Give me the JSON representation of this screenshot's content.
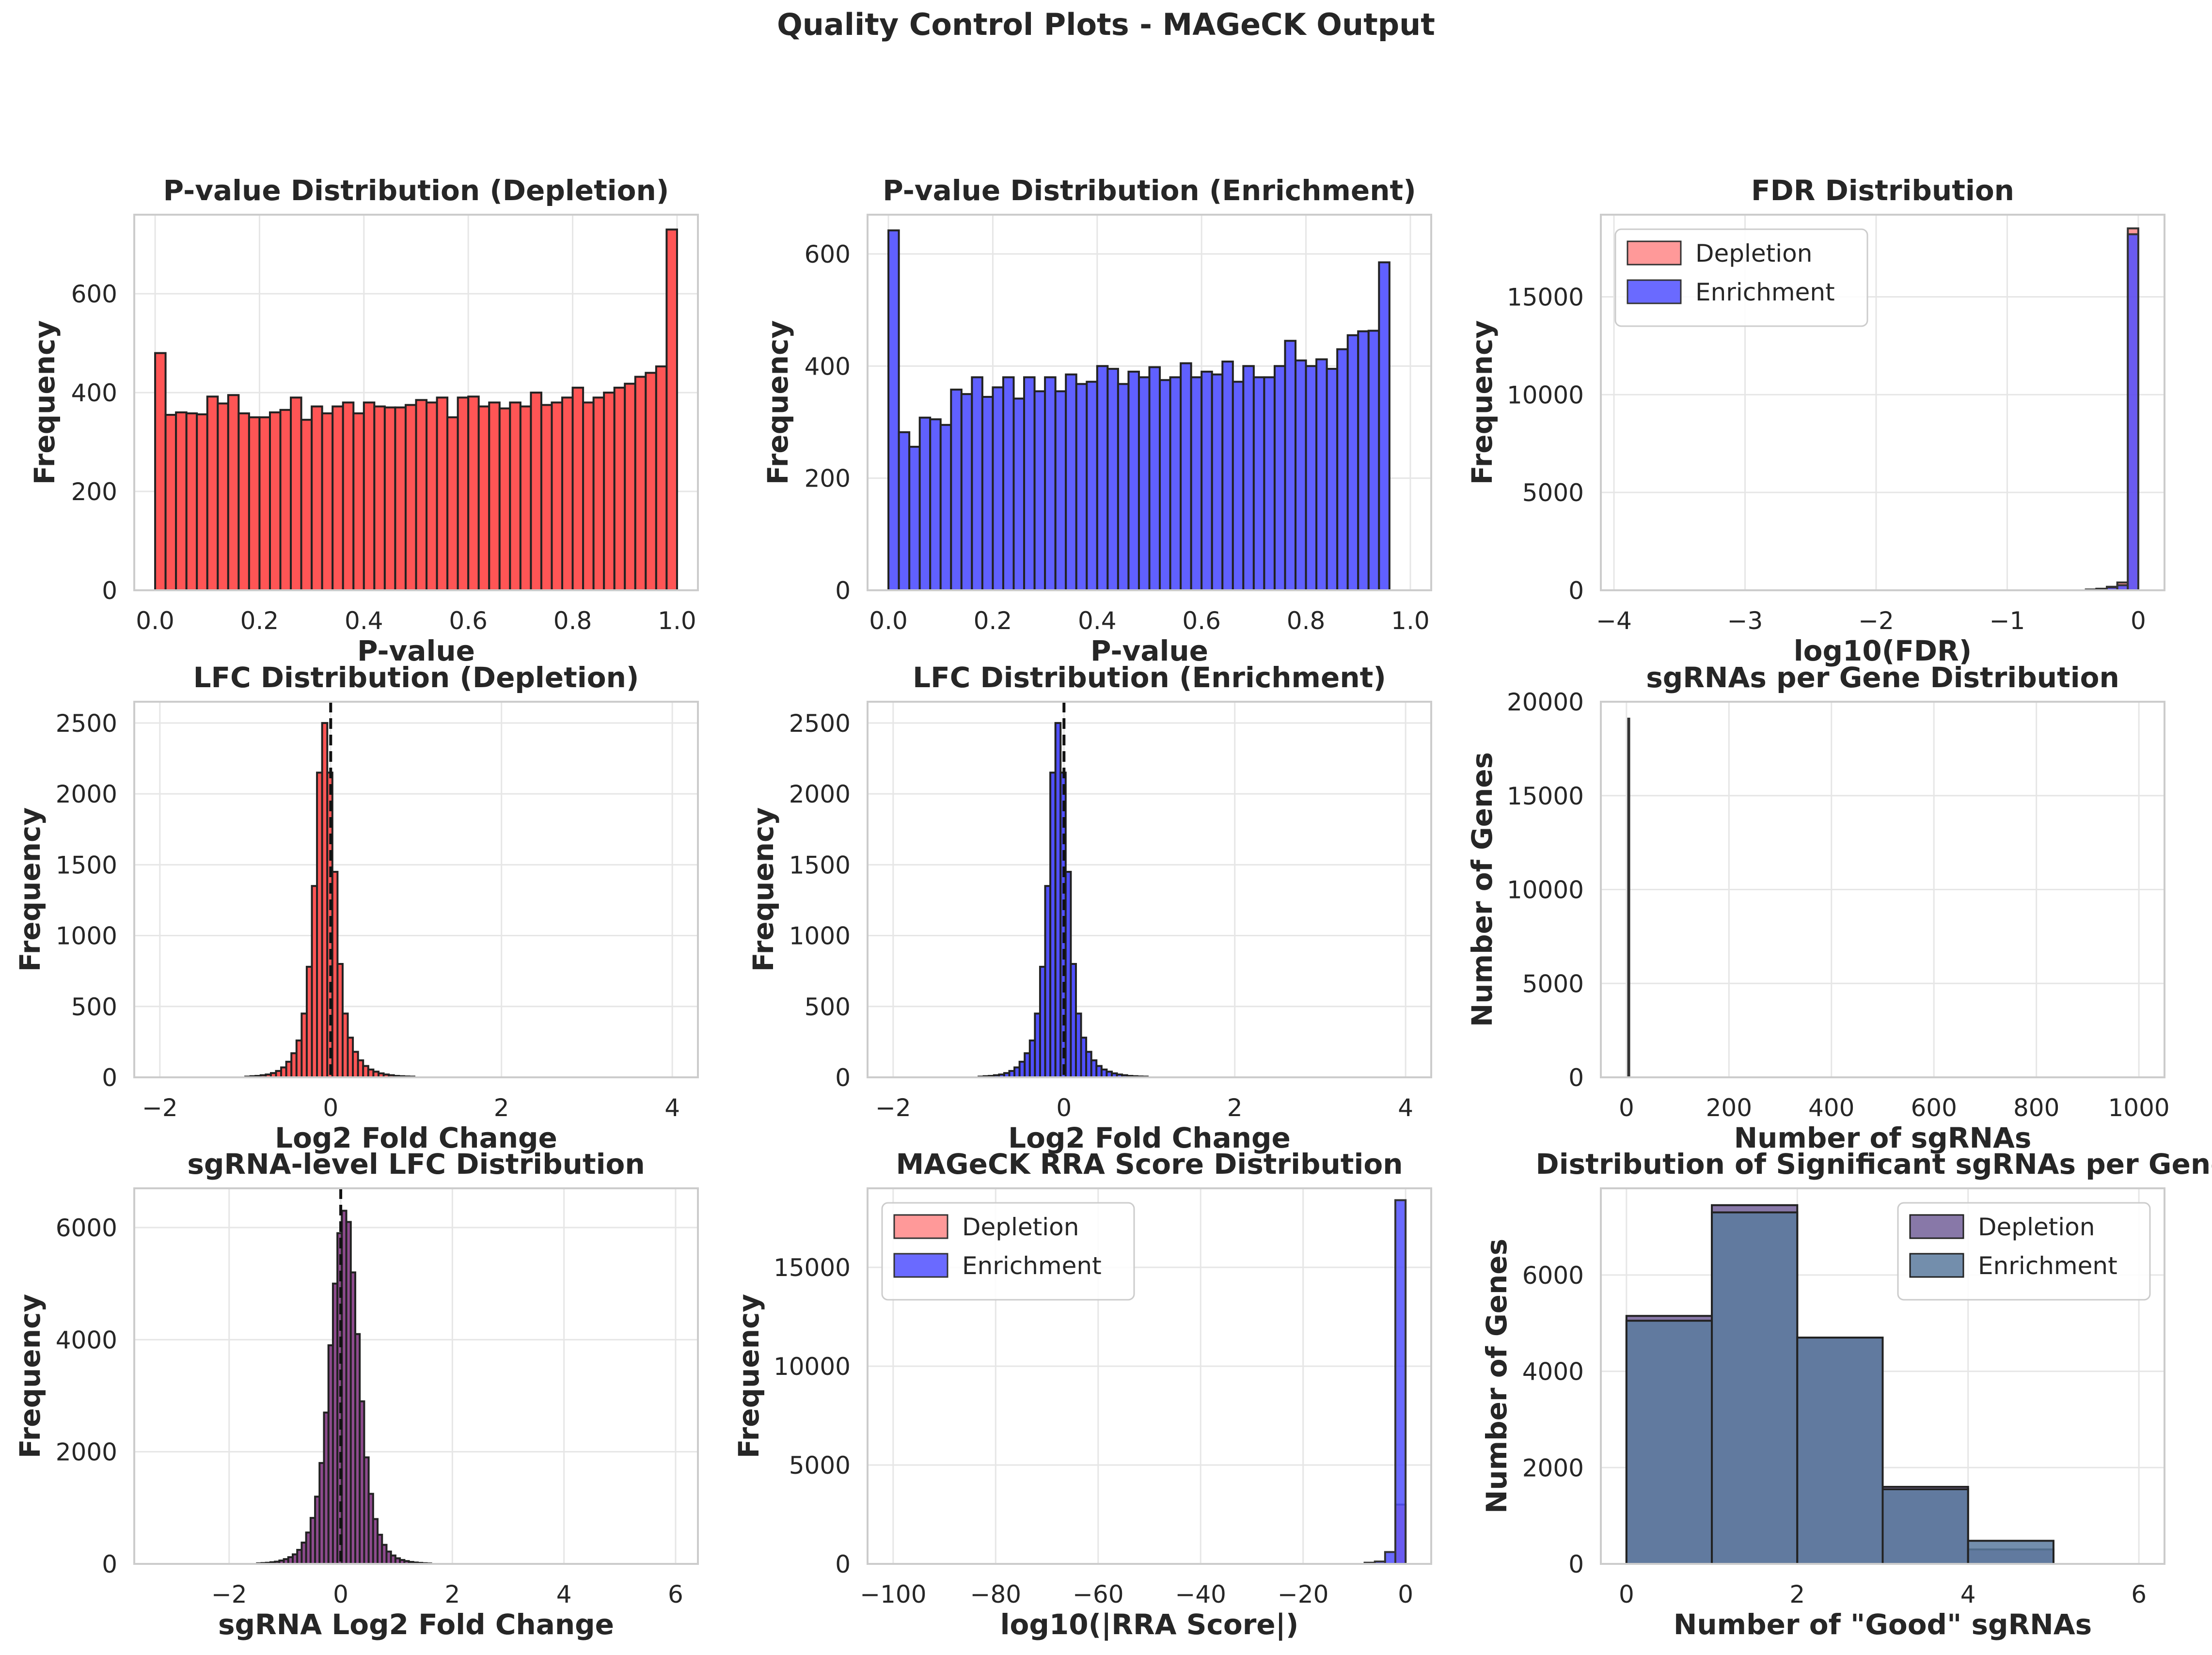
{
  "figure": {
    "suptitle": "Quality Control Plots - MAGeCK Output"
  },
  "chart_data": [
    {
      "id": "p1",
      "type": "bar",
      "title": "P-value Distribution (Depletion)",
      "xlabel": "P-value",
      "ylabel": "Frequency",
      "xlim": [
        -0.04,
        1.04
      ],
      "ylim": [
        0,
        760
      ],
      "xticks": [
        0.0,
        0.2,
        0.4,
        0.6,
        0.8,
        1.0
      ],
      "xtick_labels": [
        "0.0",
        "0.2",
        "0.4",
        "0.6",
        "0.8",
        "1.0"
      ],
      "yticks": [
        0,
        200,
        400,
        600
      ],
      "ytick_labels": [
        "0",
        "200",
        "400",
        "600"
      ],
      "grid": true,
      "legend": null,
      "series": [
        {
          "color": "#ff5555",
          "alpha": 1,
          "edge": "#222222",
          "bin_start": 0,
          "bin_width": 0.02,
          "values": [
            480,
            355,
            360,
            358,
            356,
            392,
            378,
            395,
            358,
            350,
            350,
            360,
            365,
            390,
            345,
            372,
            358,
            372,
            380,
            358,
            380,
            372,
            370,
            370,
            375,
            385,
            380,
            390,
            350,
            390,
            392,
            372,
            380,
            368,
            380,
            372,
            400,
            375,
            380,
            390,
            410,
            380,
            390,
            400,
            410,
            418,
            432,
            440,
            453,
            730
          ]
        }
      ]
    },
    {
      "id": "p2",
      "type": "bar",
      "title": "P-value Distribution (Enrichment)",
      "xlabel": "P-value",
      "ylabel": "Frequency",
      "xlim": [
        -0.04,
        1.04
      ],
      "ylim": [
        0,
        670
      ],
      "xticks": [
        0.0,
        0.2,
        0.4,
        0.6,
        0.8,
        1.0
      ],
      "xtick_labels": [
        "0.0",
        "0.2",
        "0.4",
        "0.6",
        "0.8",
        "1.0"
      ],
      "yticks": [
        0,
        200,
        400,
        600
      ],
      "ytick_labels": [
        "0",
        "200",
        "400",
        "600"
      ],
      "grid": true,
      "legend": null,
      "series": [
        {
          "color": "#6060ff",
          "alpha": 1,
          "edge": "#222222",
          "bin_start": 0,
          "bin_width": 0.02,
          "values": [
            642,
            282,
            256,
            308,
            305,
            295,
            358,
            350,
            380,
            345,
            362,
            380,
            342,
            380,
            355,
            380,
            355,
            385,
            368,
            372,
            400,
            395,
            368,
            390,
            380,
            398,
            375,
            380,
            405,
            380,
            390,
            385,
            408,
            372,
            400,
            380,
            380,
            400,
            445,
            410,
            400,
            412,
            395,
            430,
            455,
            462,
            463,
            585,
            0,
            0
          ]
        }
      ]
    },
    {
      "id": "p3",
      "type": "bar",
      "title": "FDR Distribution",
      "xlabel": "log10(FDR)",
      "ylabel": "Frequency",
      "xlim": [
        -4.1,
        0.2
      ],
      "ylim": [
        0,
        19200
      ],
      "xticks": [
        -4,
        -3,
        -2,
        -1,
        0
      ],
      "xtick_labels": [
        "−4",
        "−3",
        "−2",
        "−1",
        "0"
      ],
      "yticks": [
        0,
        5000,
        10000,
        15000
      ],
      "ytick_labels": [
        "0",
        "5000",
        "10000",
        "15000"
      ],
      "grid": true,
      "legend_position": "upper-left",
      "series": [
        {
          "name": "Depletion",
          "color": "#ff5555",
          "alpha": 0.6,
          "edge": "#333333",
          "bin_start": -0.4,
          "bin_width": 0.08,
          "values": [
            40,
            80,
            180,
            400,
            18500
          ]
        },
        {
          "name": "Enrichment",
          "color": "#5050ff",
          "alpha": 0.85,
          "edge": "#333333",
          "bin_start": -0.4,
          "bin_width": 0.08,
          "values": [
            30,
            70,
            150,
            260,
            18200
          ]
        }
      ]
    },
    {
      "id": "p4",
      "type": "bar",
      "title": "LFC Distribution (Depletion)",
      "xlabel": "Log2 Fold Change",
      "ylabel": "Frequency",
      "xlim": [
        -2.3,
        4.3
      ],
      "ylim": [
        0,
        2650
      ],
      "xticks": [
        -2,
        0,
        2,
        4
      ],
      "xtick_labels": [
        "−2",
        "0",
        "2",
        "4"
      ],
      "yticks": [
        0,
        500,
        1000,
        1500,
        2000,
        2500
      ],
      "ytick_labels": [
        "0",
        "500",
        "1000",
        "1500",
        "2000",
        "2500"
      ],
      "grid": true,
      "legend": null,
      "vline": 0,
      "series": [
        {
          "color": "#ff5555",
          "alpha": 1,
          "edge": "#222222",
          "bin_start": -1.0,
          "bin_width": 0.06,
          "values": [
            5,
            8,
            10,
            15,
            20,
            30,
            45,
            70,
            110,
            170,
            260,
            450,
            780,
            1350,
            2150,
            2500,
            2150,
            1450,
            800,
            450,
            280,
            180,
            120,
            80,
            55,
            40,
            28,
            20,
            15,
            10,
            8,
            6,
            5
          ]
        }
      ]
    },
    {
      "id": "p5",
      "type": "bar",
      "title": "LFC Distribution (Enrichment)",
      "xlabel": "Log2 Fold Change",
      "ylabel": "Frequency",
      "xlim": [
        -2.3,
        4.3
      ],
      "ylim": [
        0,
        2650
      ],
      "xticks": [
        -2,
        0,
        2,
        4
      ],
      "xtick_labels": [
        "−2",
        "0",
        "2",
        "4"
      ],
      "yticks": [
        0,
        500,
        1000,
        1500,
        2000,
        2500
      ],
      "ytick_labels": [
        "0",
        "500",
        "1000",
        "1500",
        "2000",
        "2500"
      ],
      "grid": true,
      "legend": null,
      "vline": 0,
      "series": [
        {
          "color": "#5050ff",
          "alpha": 1,
          "edge": "#222222",
          "bin_start": -1.0,
          "bin_width": 0.06,
          "values": [
            5,
            8,
            10,
            15,
            20,
            30,
            45,
            70,
            110,
            170,
            260,
            450,
            780,
            1350,
            2150,
            2500,
            2150,
            1450,
            800,
            450,
            280,
            180,
            120,
            80,
            55,
            40,
            28,
            20,
            15,
            10,
            8,
            6,
            5
          ]
        }
      ]
    },
    {
      "id": "p6",
      "type": "bar",
      "title": "sgRNAs per Gene Distribution",
      "xlabel": "Number of sgRNAs",
      "ylabel": "Number of Genes",
      "xlim": [
        -50,
        1050
      ],
      "ylim": [
        0,
        20000
      ],
      "xticks": [
        0,
        200,
        400,
        600,
        800,
        1000
      ],
      "xtick_labels": [
        "0",
        "200",
        "400",
        "600",
        "800",
        "1000"
      ],
      "yticks": [
        0,
        5000,
        10000,
        15000,
        20000
      ],
      "ytick_labels": [
        "0",
        "5000",
        "10000",
        "15000",
        "20000"
      ],
      "grid": true,
      "legend": null,
      "series": [
        {
          "color": "#333333",
          "alpha": 1,
          "edge": "#333333",
          "bin_start": 3.5,
          "bin_width": 1,
          "values": [
            19100
          ]
        }
      ]
    },
    {
      "id": "p7",
      "type": "bar",
      "title": "sgRNA-level LFC Distribution",
      "xlabel": "sgRNA Log2 Fold Change",
      "ylabel": "Frequency",
      "xlim": [
        -3.7,
        6.4
      ],
      "ylim": [
        0,
        6700
      ],
      "xticks": [
        -2,
        0,
        2,
        4,
        6
      ],
      "xtick_labels": [
        "−2",
        "0",
        "2",
        "4",
        "6"
      ],
      "yticks": [
        0,
        2000,
        4000,
        6000
      ],
      "ytick_labels": [
        "0",
        "2000",
        "4000",
        "6000"
      ],
      "grid": true,
      "legend": null,
      "vline": 0,
      "series": [
        {
          "color": "#8e4b8e",
          "alpha": 1,
          "edge": "#222222",
          "bin_start": -1.5,
          "bin_width": 0.08,
          "values": [
            10,
            15,
            20,
            30,
            40,
            60,
            85,
            120,
            170,
            250,
            380,
            560,
            820,
            1200,
            1800,
            2700,
            3900,
            5000,
            5900,
            6300,
            6100,
            5200,
            4100,
            2900,
            1900,
            1250,
            800,
            520,
            340,
            220,
            150,
            100,
            70,
            50,
            35,
            25,
            18,
            12,
            8
          ]
        }
      ]
    },
    {
      "id": "p8",
      "type": "bar",
      "title": "MAGeCK RRA Score Distribution",
      "xlabel": "log10(|RRA Score|)",
      "ylabel": "Frequency",
      "xlim": [
        -105,
        5
      ],
      "ylim": [
        0,
        19000
      ],
      "xticks": [
        -100,
        -80,
        -60,
        -40,
        -20,
        0
      ],
      "xtick_labels": [
        "−100",
        "−80",
        "−60",
        "−40",
        "−20",
        "0"
      ],
      "yticks": [
        0,
        5000,
        10000,
        15000
      ],
      "ytick_labels": [
        "0",
        "5000",
        "10000",
        "15000"
      ],
      "grid": true,
      "legend_position": "upper-left",
      "series": [
        {
          "name": "Depletion",
          "color": "#ff5555",
          "alpha": 0.6,
          "edge": "#333333",
          "bin_start": -2.0,
          "bin_width": 2.0,
          "values": [
            3000
          ]
        },
        {
          "name": "Enrichment",
          "color": "#5050ff",
          "alpha": 0.85,
          "edge": "#333333",
          "bin_start": -8.0,
          "bin_width": 2.0,
          "values": [
            60,
            120,
            600,
            18400
          ]
        }
      ]
    },
    {
      "id": "p9",
      "type": "bar",
      "title": "Distribution of Significant sgRNAs per Gene",
      "xlabel": "Number of \"Good\" sgRNAs",
      "ylabel": "Number of Genes",
      "xlim": [
        -0.3,
        6.3
      ],
      "ylim": [
        0,
        7800
      ],
      "xticks": [
        0,
        2,
        4,
        6
      ],
      "xtick_labels": [
        "0",
        "2",
        "4",
        "6"
      ],
      "yticks": [
        0,
        2000,
        4000,
        6000
      ],
      "ytick_labels": [
        "0",
        "2000",
        "4000",
        "6000"
      ],
      "grid": true,
      "legend_position": "upper-right",
      "series": [
        {
          "name": "Depletion",
          "color": "#8878a8",
          "alpha": 1,
          "edge": "#222222",
          "bin_start": 0,
          "bin_width": 1,
          "values": [
            5150,
            7450,
            4700,
            1600,
            300,
            0
          ]
        },
        {
          "name": "Enrichment",
          "color": "#5a7a9e",
          "alpha": 0.85,
          "edge": "#222222",
          "bin_start": 0,
          "bin_width": 1,
          "values": [
            5050,
            7300,
            4700,
            1550,
            480,
            0
          ]
        }
      ]
    }
  ]
}
